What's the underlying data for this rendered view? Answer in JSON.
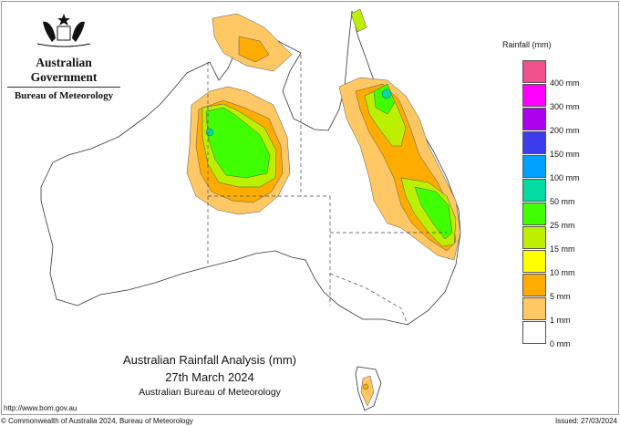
{
  "header": {
    "agency": "Australian Government",
    "bureau": "Bureau of Meteorology",
    "logo": "coat-of-arms"
  },
  "title": {
    "line1": "Australian Rainfall Analysis (mm)",
    "line2": "27th March 2024",
    "line3": "Australian Bureau of Meteorology"
  },
  "footer": {
    "url": "http://www.bom.gov.au",
    "copyright": "© Commonwealth of Australia 2024, Bureau of Meteorology",
    "issued": "Issued: 27/03/2024"
  },
  "legend": {
    "title": "Rainfall (mm)",
    "bands": [
      {
        "color": "#f0508c"
      },
      {
        "color": "#ff00ff"
      },
      {
        "color": "#aa00ee"
      },
      {
        "color": "#3c3cee"
      },
      {
        "color": "#00a0ff"
      },
      {
        "color": "#00dca0"
      },
      {
        "color": "#40ff00"
      },
      {
        "color": "#bcf000"
      },
      {
        "color": "#ffff00"
      },
      {
        "color": "#ffac00"
      },
      {
        "color": "#ffc864"
      },
      {
        "color": "#ffffff"
      }
    ],
    "labels": [
      "400 mm",
      "300 mm",
      "200 mm",
      "150 mm",
      "100 mm",
      "50 mm",
      "25 mm",
      "15 mm",
      "10 mm",
      "5 mm",
      "1 mm",
      "0 mm"
    ]
  }
}
